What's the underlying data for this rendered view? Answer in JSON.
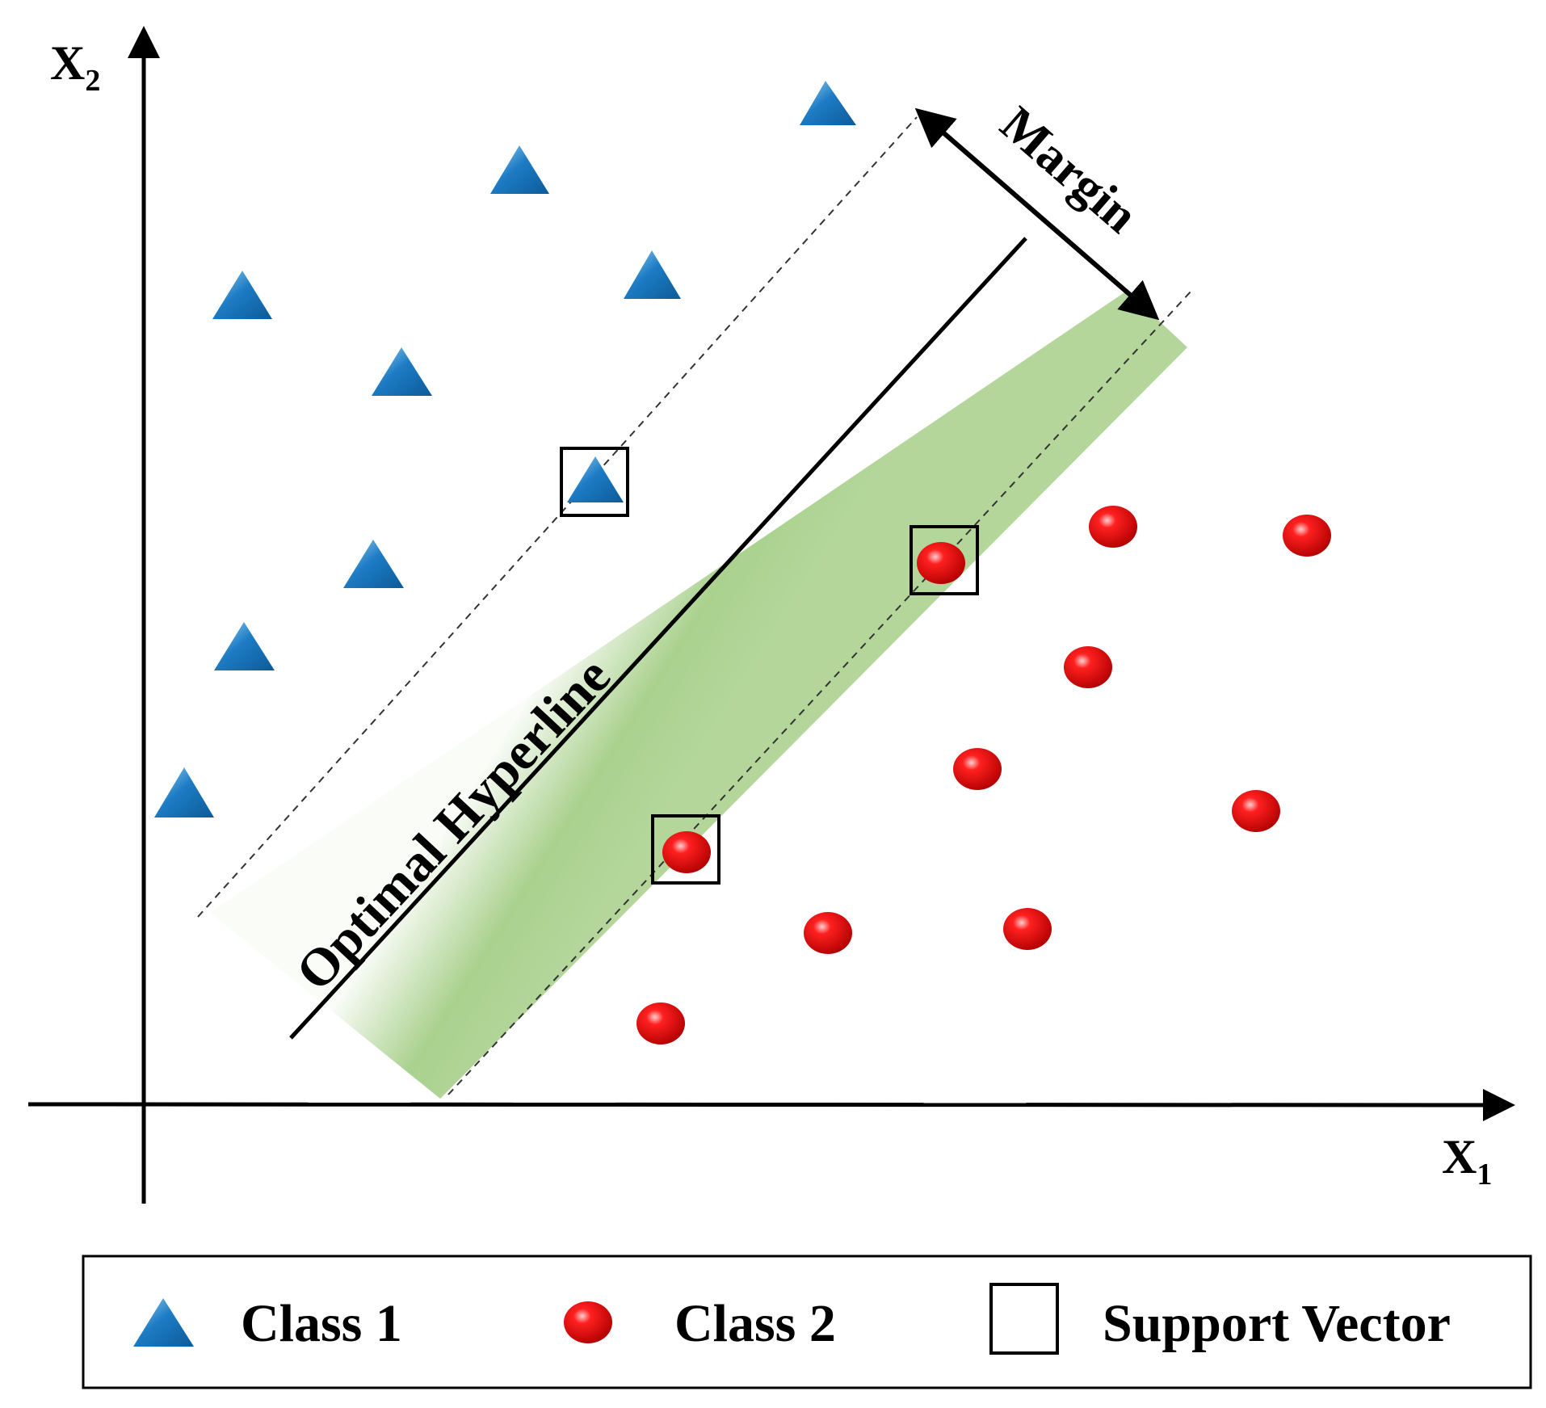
{
  "axes": {
    "x_label": "X",
    "x_sub": "1",
    "y_label": "X",
    "y_sub": "2"
  },
  "annotations": {
    "hyperline": "Optimal Hyperline",
    "margin": "Margin"
  },
  "legend": {
    "class1": "Class 1",
    "class2": "Class 2",
    "support_vector": "Support Vector"
  },
  "colors": {
    "class1": "#1d7cc4",
    "class2": "#e8000a",
    "margin_band": "#9bc97a"
  }
}
